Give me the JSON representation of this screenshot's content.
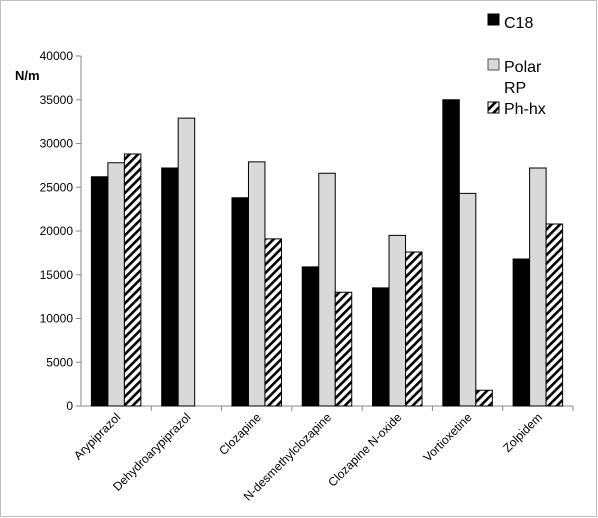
{
  "chart_data": {
    "type": "bar",
    "title": "",
    "xlabel": "",
    "ylabel": "N/m",
    "ylim": [
      0,
      40000
    ],
    "yticks": [
      0,
      5000,
      10000,
      15000,
      20000,
      25000,
      30000,
      35000,
      40000
    ],
    "grid": false,
    "legend_position": "top-right",
    "categories": [
      "Arypiprazol",
      "Dehydroarypiprazol",
      "Clozapine",
      "N-desmethylclozapine",
      "Clozapine N-oxide",
      "Vortioxetine",
      "Zolpidem"
    ],
    "series": [
      {
        "name": "C18",
        "fill": "solid",
        "color": "#000000",
        "values": [
          26200,
          27200,
          23800,
          15900,
          13500,
          35000,
          16800
        ]
      },
      {
        "name": "Polar RP",
        "fill": "solid",
        "color": "#d9d9d9",
        "values": [
          27800,
          32900,
          27900,
          26600,
          19500,
          24300,
          27200
        ]
      },
      {
        "name": "Ph-hx",
        "fill": "diagonal-hatch",
        "color": "#000000",
        "values": [
          28800,
          null,
          19100,
          13000,
          17600,
          1800,
          20800
        ]
      }
    ]
  }
}
